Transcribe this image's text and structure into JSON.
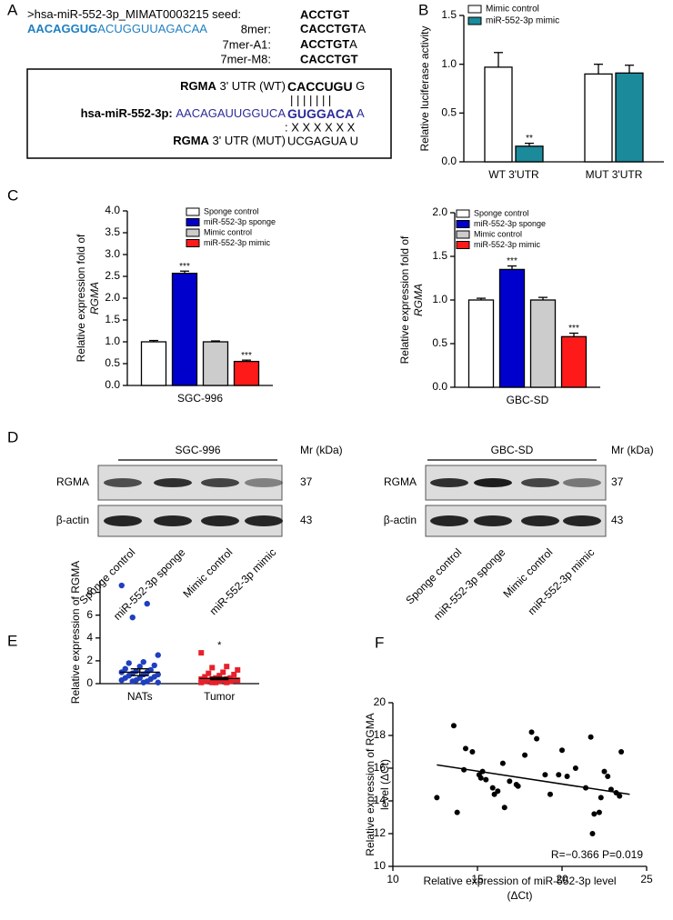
{
  "panel_labels": [
    "A",
    "B",
    "C",
    "D",
    "E",
    "F"
  ],
  "panel_a": {
    "header": ">hsa-miR-552-3p_MIMAT0003215 seed:",
    "seed": "ACCTGT",
    "mirna_seed": "AACAGGUG",
    "mirna_rest": "ACUGGUUAGACAA",
    "sites": [
      {
        "label": "8mer:",
        "bold": "CACCTGT",
        "tail": "A"
      },
      {
        "label": "7mer-A1:",
        "bold": "ACCTGT",
        "tail": "A"
      },
      {
        "label": "7mer-M8:",
        "bold": "CACCTGT"
      }
    ],
    "alignment": {
      "wt_gene": "RGMA",
      "wt_label": " 3' UTR (WT) ",
      "wt_site": "CACCUGU",
      "wt_tail": " G",
      "pairs": "| | | | | | |",
      "mirna": "hsa-miR-552-3p",
      "mirna_colon": ": ",
      "mirna_seq": "AACAGAUUGGUCA ",
      "mirna_site": "GUGGACA",
      "mirna_tail": " A",
      "mismatch": ": X X X X X X",
      "mut_gene": "RGMA",
      "mut_label": " 3' UTR (MUT) ",
      "mut_site": "UCGAGUA U"
    }
  },
  "chart_data": [
    {
      "type": "bar",
      "ylabel": [
        "Relative luciferase activity"
      ],
      "categories": [
        "WT 3'UTR",
        "MUT 3'UTR"
      ],
      "series": [
        {
          "name": "Mimic control",
          "color": "#ffffff",
          "values": [
            0.97,
            0.9
          ],
          "errors": [
            0.15,
            0.1
          ],
          "significance": [
            null,
            null
          ]
        },
        {
          "name": "miR-552-3p mimic",
          "color": "#1b8a9b",
          "values": [
            0.16,
            0.91
          ],
          "errors": [
            0.03,
            0.08
          ],
          "significance": [
            "**",
            null
          ]
        }
      ],
      "ylim": [
        0,
        1.5
      ],
      "yticks": [
        {
          "value": 0,
          "label": "0.0"
        },
        0.5,
        {
          "value": 1,
          "label": "1.0"
        },
        1.5
      ],
      "legend": "top-left"
    },
    {
      "type": "bar",
      "ylabel": [
        "Relative expression fold of",
        "RGMA"
      ],
      "categories": [
        "SGC-996"
      ],
      "series": [
        {
          "name": "Sponge control",
          "color": "#ffffff",
          "values": [
            1.0
          ],
          "errors": [
            0.03
          ],
          "significance": [
            null
          ]
        },
        {
          "name": "miR-552-3p sponge",
          "color": "#0000cc",
          "values": [
            2.57
          ],
          "errors": [
            0.05
          ],
          "significance": [
            "***"
          ]
        },
        {
          "name": "Mimic control",
          "color": "#cccccc",
          "values": [
            1.0
          ],
          "errors": [
            0.02
          ],
          "significance": [
            null
          ]
        },
        {
          "name": "miR-552-3p mimic",
          "color": "#ff1a1a",
          "values": [
            0.55
          ],
          "errors": [
            0.03
          ],
          "significance": [
            "***"
          ]
        }
      ],
      "ylim": [
        0,
        4
      ],
      "yticks": [
        {
          "value": 0,
          "label": "0.0"
        },
        0.5,
        {
          "value": 1,
          "label": "1.0"
        },
        1.5,
        {
          "value": 2,
          "label": "2.0"
        },
        2.5,
        {
          "value": 3,
          "label": "3.0"
        },
        3.5,
        {
          "value": 4,
          "label": "4.0"
        }
      ],
      "legend": "top-right"
    },
    {
      "type": "bar",
      "ylabel": [
        "Relative expression fold of",
        "RGMA"
      ],
      "categories": [
        "GBC-SD"
      ],
      "series": [
        {
          "name": "Sponge control",
          "color": "#ffffff",
          "values": [
            1.0
          ],
          "errors": [
            0.02
          ],
          "significance": [
            null
          ]
        },
        {
          "name": "miR-552-3p sponge",
          "color": "#0000cc",
          "values": [
            1.35
          ],
          "errors": [
            0.04
          ],
          "significance": [
            "***"
          ]
        },
        {
          "name": "Mimic control",
          "color": "#cccccc",
          "values": [
            1.0
          ],
          "errors": [
            0.03
          ],
          "significance": [
            null
          ]
        },
        {
          "name": "miR-552-3p mimic",
          "color": "#ff1a1a",
          "values": [
            0.58
          ],
          "errors": [
            0.04
          ],
          "significance": [
            "***"
          ]
        }
      ],
      "ylim": [
        0,
        2
      ],
      "yticks": [
        {
          "value": 0,
          "label": "0.0"
        },
        0.5,
        {
          "value": 1,
          "label": "1.0"
        },
        1.5,
        {
          "value": 2,
          "label": "2.0"
        }
      ],
      "legend": "top-right"
    },
    {
      "type": "strip",
      "ylabel": [
        "Relative expression of RGMA"
      ],
      "categories": [
        "NATs",
        "Tumor"
      ],
      "series": [
        {
          "color": "#1f3fbf",
          "marker": "circle",
          "mean": 1.0,
          "sem": 0.3,
          "values": [
            8.6,
            7.0,
            5.8,
            2.5,
            1.9,
            1.8,
            1.6,
            1.5,
            1.3,
            1.2,
            1.1,
            1.0,
            1.0,
            0.9,
            0.8,
            0.8,
            0.7,
            0.6,
            0.5,
            0.5,
            0.4,
            0.3,
            0.3,
            0.2,
            0.2,
            0.1,
            0.1
          ]
        },
        {
          "color": "#e8202a",
          "marker": "square",
          "mean": 0.45,
          "sem": 0.1,
          "significance": "*",
          "values": [
            2.7,
            1.5,
            1.4,
            1.2,
            1.0,
            0.9,
            0.8,
            0.7,
            0.6,
            0.5,
            0.5,
            0.4,
            0.4,
            0.4,
            0.3,
            0.3,
            0.3,
            0.3,
            0.2,
            0.2,
            0.2,
            0.1,
            0.1,
            0.1,
            0.1
          ]
        }
      ],
      "ylim": [
        0,
        9
      ],
      "yticks": [
        0,
        2,
        4,
        6,
        8
      ]
    },
    {
      "type": "scatter",
      "ylabel": [
        "Relative expression of RGMA",
        "level (ΔCt)"
      ],
      "xlabel": [
        "Relative expression of miR-552-3p level",
        "(ΔCt)"
      ],
      "x": [
        13.6,
        12.6,
        13.8,
        14.3,
        14.7,
        14.2,
        15.1,
        15.3,
        15.2,
        15.5,
        15.9,
        16.0,
        16.2,
        16.5,
        16.6,
        16.9,
        17.3,
        17.4,
        17.8,
        18.2,
        18.5,
        19.0,
        19.3,
        19.8,
        20.0,
        20.3,
        20.8,
        21.4,
        21.7,
        21.9,
        21.8,
        22.2,
        22.5,
        22.7,
        22.9,
        23.2,
        23.4,
        23.5,
        22.3
      ],
      "values": [
        18.6,
        14.2,
        13.3,
        17.2,
        17.0,
        15.9,
        15.6,
        15.8,
        15.4,
        15.3,
        14.8,
        14.4,
        14.6,
        16.3,
        13.6,
        15.2,
        15.0,
        14.9,
        16.8,
        18.2,
        17.8,
        15.6,
        14.4,
        15.6,
        17.1,
        15.5,
        16.0,
        14.8,
        17.9,
        13.2,
        12.0,
        13.3,
        15.8,
        15.5,
        14.7,
        14.5,
        14.3,
        17.0,
        14.2
      ],
      "color": "#000000",
      "fit": {
        "x": [
          12.6,
          24
        ],
        "y": [
          16.2,
          14.4
        ]
      },
      "annotation": "R=−0.366 P=0.019",
      "xlim": [
        10,
        25
      ],
      "xticks": [
        10,
        15,
        20,
        25
      ],
      "ylim": [
        10,
        20
      ],
      "yticks": [
        10,
        12,
        14,
        16,
        18,
        20
      ]
    }
  ],
  "panel_d": {
    "blots": [
      {
        "title": "SGC-996",
        "unit": "Mr (kDa)",
        "rows": [
          {
            "label": "RGMA",
            "mr": 37
          },
          {
            "label": "β-actin",
            "mr": 43
          }
        ],
        "lanes": [
          "Sponge control",
          "miR-552-3p sponge",
          "Mimic control",
          "miR-552-3p mimic"
        ]
      },
      {
        "title": "GBC-SD",
        "unit": "Mr (kDa)",
        "rows": [
          {
            "label": "RGMA",
            "mr": 37
          },
          {
            "label": "β-actin",
            "mr": 43
          }
        ],
        "lanes": [
          "Sponge control",
          "miR-552-3p sponge",
          "Mimic control",
          "miR-552-3p mimic"
        ]
      }
    ]
  }
}
